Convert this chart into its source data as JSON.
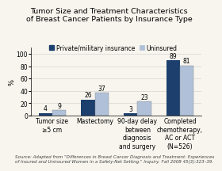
{
  "title": "Tumor Size and Treatment Characteristics\nof Breast Cancer Patients by Insurance Type",
  "ylabel": "%",
  "categories": [
    "Tumor size\n≥5 cm",
    "Mastectomy",
    "90-day delay\nbetween\ndiagnosis\nand surgery",
    "Completed\nchemotherapy,\nAC or ACT\n(N=526)"
  ],
  "private_values": [
    4,
    26,
    3,
    89
  ],
  "uninsured_values": [
    9,
    37,
    23,
    81
  ],
  "private_color": "#1c3f6e",
  "uninsured_color": "#afc0d8",
  "legend_labels": [
    "Private/military insurance",
    "Uninsured"
  ],
  "ylim": [
    0,
    110
  ],
  "yticks": [
    0,
    20,
    40,
    60,
    80,
    100
  ],
  "source_text": "Source: Adapted from \"Differences in Breast Cancer Diagnosis and Treatment: Experiences\nof Insured and Uninsured Women in a Safety-Net Setting.\" Inquiry. Fall 2008 45(3):323–39.",
  "bar_width": 0.32,
  "title_fontsize": 6.8,
  "axis_fontsize": 6.0,
  "tick_fontsize": 5.5,
  "legend_fontsize": 5.5,
  "source_fontsize": 4.0,
  "value_fontsize": 5.5,
  "bg_color": "#f7f5ee"
}
